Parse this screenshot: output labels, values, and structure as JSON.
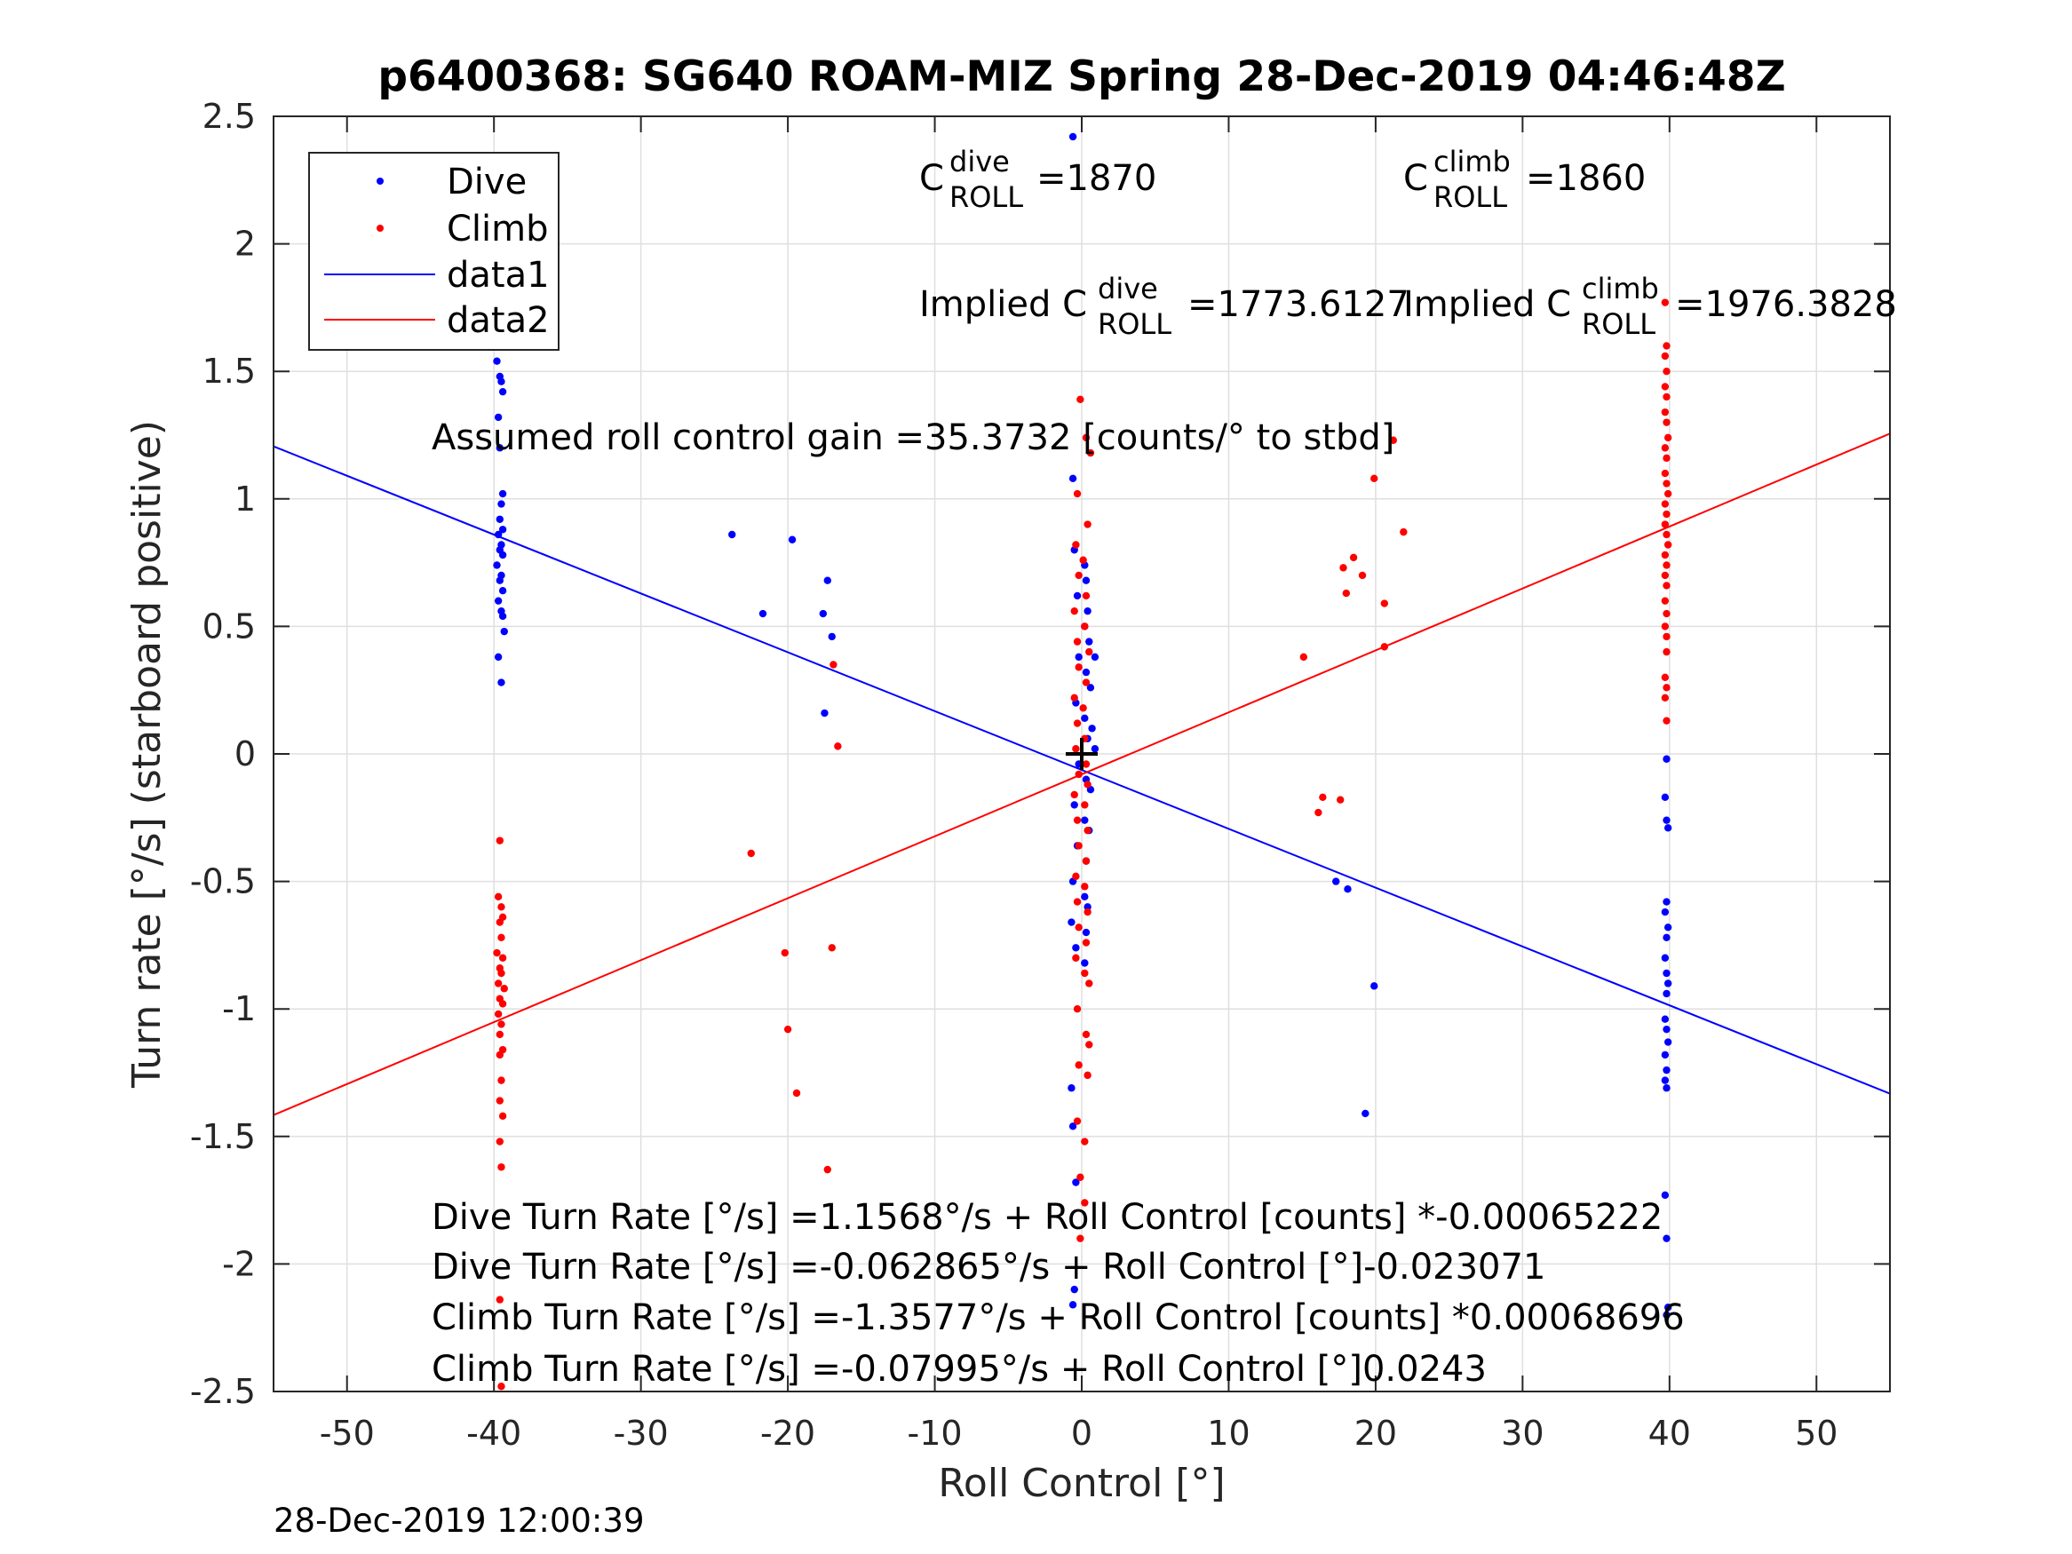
{
  "chart_data": {
    "type": "scatter",
    "title": "p6400368: SG640 ROAM-MIZ Spring 28-Dec-2019 04:46:48Z",
    "xlabel": "Roll Control [°]",
    "ylabel": "Turn rate [°/s] (starboard positive)",
    "xlim": [
      -55,
      55
    ],
    "ylim": [
      -2.5,
      2.5
    ],
    "xticks": [
      -50,
      -40,
      -30,
      -20,
      -10,
      0,
      10,
      20,
      30,
      40,
      50
    ],
    "xtick_labels": [
      "-50",
      "-40",
      "-30",
      "-20",
      "-10",
      "0",
      "10",
      "20",
      "30",
      "40",
      "50"
    ],
    "yticks": [
      -2.5,
      -2,
      -1.5,
      -1,
      -0.5,
      0,
      0.5,
      1,
      1.5,
      2,
      2.5
    ],
    "ytick_labels": [
      "-2.5",
      "-2",
      "-1.5",
      "-1",
      "-0.5",
      "0",
      "0.5",
      "1",
      "1.5",
      "2",
      "2.5"
    ],
    "grid": true,
    "legend_position": "top-left",
    "legend": [
      "Dive",
      "Climb",
      "data1",
      "data2"
    ],
    "colors": {
      "dive": "#0000ff",
      "climb": "#ff0000",
      "axis": "#262626",
      "grid": "#dfdfdf"
    },
    "series": [
      {
        "name": "Dive",
        "type": "scatter",
        "color": "#0000ff",
        "points": [
          [
            -0.6,
            2.42
          ],
          [
            -39.8,
            1.54
          ],
          [
            -39.6,
            1.48
          ],
          [
            -39.5,
            1.46
          ],
          [
            -39.4,
            1.42
          ],
          [
            -39.7,
            1.32
          ],
          [
            -39.6,
            1.2
          ],
          [
            -39.4,
            1.02
          ],
          [
            -39.5,
            0.98
          ],
          [
            -39.6,
            0.92
          ],
          [
            -39.4,
            0.88
          ],
          [
            -39.7,
            0.86
          ],
          [
            -39.5,
            0.82
          ],
          [
            -39.6,
            0.8
          ],
          [
            -39.4,
            0.78
          ],
          [
            -39.8,
            0.74
          ],
          [
            -39.5,
            0.7
          ],
          [
            -39.6,
            0.68
          ],
          [
            -39.4,
            0.64
          ],
          [
            -39.7,
            0.6
          ],
          [
            -39.5,
            0.56
          ],
          [
            -39.4,
            0.54
          ],
          [
            -39.3,
            0.48
          ],
          [
            -39.7,
            0.38
          ],
          [
            -39.5,
            0.28
          ],
          [
            -23.8,
            0.86
          ],
          [
            -19.7,
            0.84
          ],
          [
            -21.7,
            0.55
          ],
          [
            -17.3,
            0.68
          ],
          [
            -17.6,
            0.55
          ],
          [
            -17.0,
            0.46
          ],
          [
            -17.5,
            0.16
          ],
          [
            -0.6,
            1.08
          ],
          [
            -0.5,
            0.8
          ],
          [
            0.2,
            0.74
          ],
          [
            0.3,
            0.68
          ],
          [
            -0.3,
            0.62
          ],
          [
            0.4,
            0.56
          ],
          [
            0.2,
            0.5
          ],
          [
            0.5,
            0.44
          ],
          [
            -0.2,
            0.38
          ],
          [
            0.9,
            0.38
          ],
          [
            0.3,
            0.32
          ],
          [
            0.6,
            0.26
          ],
          [
            -0.4,
            0.2
          ],
          [
            0.2,
            0.14
          ],
          [
            0.7,
            0.1
          ],
          [
            0.4,
            0.06
          ],
          [
            0.9,
            0.02
          ],
          [
            -0.2,
            -0.04
          ],
          [
            0.3,
            -0.1
          ],
          [
            0.6,
            -0.14
          ],
          [
            -0.5,
            -0.2
          ],
          [
            0.2,
            -0.26
          ],
          [
            0.5,
            -0.3
          ],
          [
            -0.3,
            -0.36
          ],
          [
            0.3,
            -0.42
          ],
          [
            -0.6,
            -0.5
          ],
          [
            0.2,
            -0.56
          ],
          [
            0.4,
            -0.6
          ],
          [
            -0.7,
            -0.66
          ],
          [
            0.3,
            -0.7
          ],
          [
            -0.4,
            -0.76
          ],
          [
            0.2,
            -0.82
          ],
          [
            -0.7,
            -1.31
          ],
          [
            -0.6,
            -1.46
          ],
          [
            -0.4,
            -1.68
          ],
          [
            -0.5,
            -2.1
          ],
          [
            -0.6,
            -2.16
          ],
          [
            17.3,
            -0.5
          ],
          [
            18.1,
            -0.53
          ],
          [
            19.9,
            -0.91
          ],
          [
            19.3,
            -1.41
          ],
          [
            39.8,
            -0.02
          ],
          [
            39.7,
            -0.17
          ],
          [
            39.8,
            -0.26
          ],
          [
            39.9,
            -0.29
          ],
          [
            39.8,
            -0.58
          ],
          [
            39.7,
            -0.62
          ],
          [
            39.9,
            -0.68
          ],
          [
            39.8,
            -0.72
          ],
          [
            39.7,
            -0.8
          ],
          [
            39.8,
            -0.86
          ],
          [
            39.9,
            -0.9
          ],
          [
            39.8,
            -0.94
          ],
          [
            39.7,
            -1.04
          ],
          [
            39.8,
            -1.08
          ],
          [
            39.9,
            -1.13
          ],
          [
            39.7,
            -1.18
          ],
          [
            39.8,
            -1.24
          ],
          [
            39.7,
            -1.28
          ],
          [
            39.8,
            -1.31
          ],
          [
            39.7,
            -1.73
          ],
          [
            39.8,
            -1.9
          ],
          [
            39.9,
            -2.17
          ],
          [
            39.8,
            -2.2
          ]
        ]
      },
      {
        "name": "Climb",
        "type": "scatter",
        "color": "#ff0000",
        "points": [
          [
            -39.6,
            -0.34
          ],
          [
            -39.7,
            -0.56
          ],
          [
            -39.5,
            -0.6
          ],
          [
            -39.4,
            -0.64
          ],
          [
            -39.6,
            -0.66
          ],
          [
            -39.5,
            -0.72
          ],
          [
            -39.8,
            -0.78
          ],
          [
            -39.4,
            -0.8
          ],
          [
            -39.6,
            -0.84
          ],
          [
            -39.5,
            -0.86
          ],
          [
            -39.7,
            -0.9
          ],
          [
            -39.3,
            -0.92
          ],
          [
            -39.6,
            -0.96
          ],
          [
            -39.4,
            -0.98
          ],
          [
            -39.7,
            -1.02
          ],
          [
            -39.5,
            -1.06
          ],
          [
            -39.6,
            -1.1
          ],
          [
            -39.4,
            -1.16
          ],
          [
            -39.6,
            -1.18
          ],
          [
            -39.5,
            -1.28
          ],
          [
            -39.6,
            -1.36
          ],
          [
            -39.4,
            -1.42
          ],
          [
            -39.6,
            -1.52
          ],
          [
            -39.5,
            -1.62
          ],
          [
            -39.6,
            -2.14
          ],
          [
            -39.5,
            -2.48
          ],
          [
            -16.9,
            0.35
          ],
          [
            -16.6,
            0.03
          ],
          [
            -22.5,
            -0.39
          ],
          [
            -20.2,
            -0.78
          ],
          [
            -17.0,
            -0.76
          ],
          [
            -20.0,
            -1.08
          ],
          [
            -19.4,
            -1.33
          ],
          [
            -17.3,
            -1.63
          ],
          [
            -0.1,
            1.39
          ],
          [
            0.3,
            1.24
          ],
          [
            0.6,
            1.18
          ],
          [
            -0.3,
            1.02
          ],
          [
            0.4,
            0.9
          ],
          [
            -0.4,
            0.82
          ],
          [
            0.1,
            0.76
          ],
          [
            -0.2,
            0.7
          ],
          [
            0.3,
            0.62
          ],
          [
            -0.5,
            0.56
          ],
          [
            0.2,
            0.5
          ],
          [
            -0.3,
            0.44
          ],
          [
            0.5,
            0.4
          ],
          [
            -0.2,
            0.34
          ],
          [
            0.3,
            0.28
          ],
          [
            -0.5,
            0.22
          ],
          [
            0.1,
            0.18
          ],
          [
            -0.3,
            0.12
          ],
          [
            0.2,
            0.06
          ],
          [
            -0.4,
            0.02
          ],
          [
            0.3,
            -0.04
          ],
          [
            -0.2,
            -0.08
          ],
          [
            0.4,
            -0.12
          ],
          [
            -0.5,
            -0.16
          ],
          [
            0.2,
            -0.2
          ],
          [
            -0.3,
            -0.26
          ],
          [
            0.4,
            -0.3
          ],
          [
            -0.2,
            -0.36
          ],
          [
            0.3,
            -0.42
          ],
          [
            -0.4,
            -0.48
          ],
          [
            0.2,
            -0.52
          ],
          [
            -0.3,
            -0.58
          ],
          [
            0.4,
            -0.62
          ],
          [
            -0.2,
            -0.68
          ],
          [
            0.3,
            -0.74
          ],
          [
            -0.4,
            -0.8
          ],
          [
            0.2,
            -0.86
          ],
          [
            0.5,
            -0.9
          ],
          [
            -0.3,
            -1.0
          ],
          [
            0.3,
            -1.1
          ],
          [
            0.5,
            -1.14
          ],
          [
            -0.2,
            -1.22
          ],
          [
            0.4,
            -1.26
          ],
          [
            -0.3,
            -1.44
          ],
          [
            0.2,
            -1.52
          ],
          [
            -0.1,
            -1.66
          ],
          [
            0.2,
            -1.76
          ],
          [
            -0.1,
            -1.9
          ],
          [
            21.2,
            1.23
          ],
          [
            19.9,
            1.08
          ],
          [
            21.9,
            0.87
          ],
          [
            18.5,
            0.77
          ],
          [
            17.8,
            0.73
          ],
          [
            19.1,
            0.7
          ],
          [
            18.0,
            0.63
          ],
          [
            20.6,
            0.59
          ],
          [
            20.6,
            0.42
          ],
          [
            15.1,
            0.38
          ],
          [
            16.4,
            -0.17
          ],
          [
            17.6,
            -0.18
          ],
          [
            16.1,
            -0.23
          ],
          [
            39.7,
            1.77
          ],
          [
            39.8,
            1.6
          ],
          [
            39.7,
            1.56
          ],
          [
            39.8,
            1.5
          ],
          [
            39.7,
            1.44
          ],
          [
            39.8,
            1.4
          ],
          [
            39.7,
            1.34
          ],
          [
            39.8,
            1.3
          ],
          [
            39.9,
            1.24
          ],
          [
            39.7,
            1.2
          ],
          [
            39.8,
            1.16
          ],
          [
            39.7,
            1.1
          ],
          [
            39.8,
            1.06
          ],
          [
            39.9,
            1.02
          ],
          [
            39.7,
            0.98
          ],
          [
            39.8,
            0.94
          ],
          [
            39.7,
            0.9
          ],
          [
            39.8,
            0.86
          ],
          [
            39.9,
            0.82
          ],
          [
            39.7,
            0.78
          ],
          [
            39.8,
            0.74
          ],
          [
            39.7,
            0.7
          ],
          [
            39.8,
            0.66
          ],
          [
            39.7,
            0.6
          ],
          [
            39.8,
            0.55
          ],
          [
            39.7,
            0.5
          ],
          [
            39.8,
            0.46
          ],
          [
            39.8,
            0.4
          ],
          [
            39.7,
            0.3
          ],
          [
            39.8,
            0.26
          ],
          [
            39.7,
            0.22
          ],
          [
            39.8,
            0.13
          ]
        ]
      },
      {
        "name": "data1",
        "type": "line",
        "color": "#0000ff",
        "x": [
          -55,
          55
        ],
        "y": [
          1.206,
          -1.332
        ]
      },
      {
        "name": "data2",
        "type": "line",
        "color": "#ff0000",
        "x": [
          -55,
          55
        ],
        "y": [
          -1.416,
          1.256
        ]
      }
    ],
    "center_marker": {
      "x": 0,
      "y": 0,
      "symbol": "+"
    },
    "annotations": {
      "c_dive_base": "C",
      "c_dive_sup": "dive",
      "c_dive_sub": "ROLL",
      "c_dive_value": "=1870",
      "c_climb_base": "C",
      "c_climb_sup": "climb",
      "c_climb_sub": "ROLL",
      "c_climb_value": "=1860",
      "implied_dive_base": "Implied C",
      "implied_dive_sup": "dive",
      "implied_dive_sub": "ROLL",
      "implied_dive_value": "=1773.6127",
      "implied_climb_base": "Implied C",
      "implied_climb_sup": "climb",
      "implied_climb_sub": "ROLL",
      "implied_climb_value": "=1976.3828",
      "gain": "Assumed roll control gain =35.3732 [counts/° to stbd]",
      "fit_lines": [
        "Dive Turn Rate [°/s] =1.1568°/s + Roll Control [counts] *-0.00065222",
        "Dive Turn Rate [°/s] =-0.062865°/s + Roll Control [°]-0.023071",
        "Climb Turn Rate [°/s] =-1.3577°/s + Roll Control [counts] *0.00068696",
        "Climb Turn Rate [°/s] =-0.07995°/s + Roll Control [°]0.0243"
      ]
    },
    "footer": "28-Dec-2019 12:00:39"
  }
}
